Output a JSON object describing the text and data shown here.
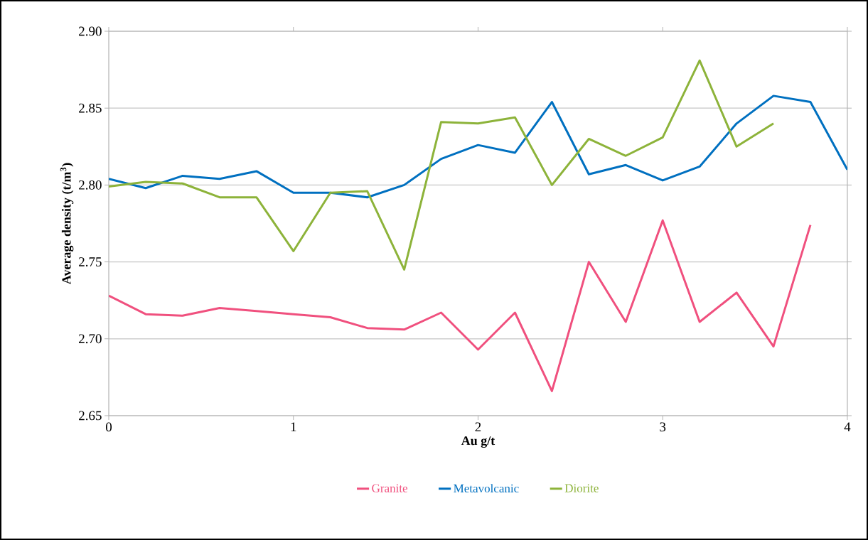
{
  "chart_data": {
    "type": "line",
    "xlabel": "Au g/t",
    "ylabel": "Average density (t/m$^{3}$)",
    "x": [
      0,
      0.2,
      0.4,
      0.6,
      0.8,
      1.0,
      1.2,
      1.4,
      1.6,
      1.8,
      2.0,
      2.2,
      2.4,
      2.6,
      2.8,
      3.0,
      3.2,
      3.4,
      3.6,
      3.8,
      4.0
    ],
    "series": [
      {
        "name": "Granite",
        "color": "#f0507e",
        "values": [
          2.728,
          2.716,
          2.715,
          2.72,
          2.718,
          2.716,
          2.714,
          2.707,
          2.706,
          2.717,
          2.693,
          2.717,
          2.666,
          2.75,
          2.711,
          2.777,
          2.711,
          2.73,
          2.695,
          2.774,
          null
        ]
      },
      {
        "name": "Metavolcanic",
        "color": "#0070c0",
        "values": [
          2.804,
          2.798,
          2.806,
          2.804,
          2.809,
          2.795,
          2.795,
          2.792,
          2.8,
          2.817,
          2.826,
          2.821,
          2.854,
          2.807,
          2.813,
          2.803,
          2.812,
          2.84,
          2.858,
          2.854,
          2.81
        ]
      },
      {
        "name": "Diorite",
        "color": "#8db33a",
        "values": [
          2.799,
          2.802,
          2.801,
          2.792,
          2.792,
          2.757,
          2.795,
          2.796,
          2.745,
          2.841,
          2.84,
          2.844,
          2.8,
          2.83,
          2.819,
          2.831,
          2.881,
          2.825,
          2.84,
          null,
          null
        ]
      }
    ],
    "xlim": [
      0,
      4
    ],
    "xticks": [
      0,
      1,
      2,
      3,
      4
    ],
    "ylim": [
      2.65,
      2.9
    ],
    "yticks": [
      {
        "value": 2.65,
        "label": "2.65"
      },
      {
        "value": 2.7,
        "label": "2.70"
      },
      {
        "value": 2.75,
        "label": "2.75"
      },
      {
        "value": 2.8,
        "label": "2.80"
      },
      {
        "value": 2.85,
        "label": "2.85"
      },
      {
        "value": 2.9,
        "label": "2.90"
      }
    ],
    "grid": "y",
    "legend": "bottom",
    "marker": "none",
    "line_style": "solid"
  }
}
